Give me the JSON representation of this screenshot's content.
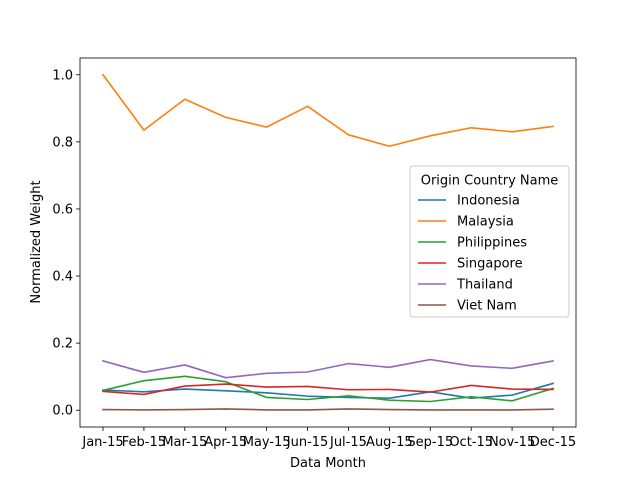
{
  "chart_data": {
    "type": "line",
    "title": "",
    "xlabel": "Data Month",
    "ylabel": "Normalized Weight",
    "categories": [
      "Jan-15",
      "Feb-15",
      "Mar-15",
      "Apr-15",
      "May-15",
      "Jun-15",
      "Jul-15",
      "Aug-15",
      "Sep-15",
      "Oct-15",
      "Nov-15",
      "Dec-15"
    ],
    "ylim": [
      -0.05,
      1.05
    ],
    "yticks": [
      0.0,
      0.2,
      0.4,
      0.6,
      0.8,
      1.0
    ],
    "grid": false,
    "legend": {
      "title": "Origin Country Name",
      "placement": "center-right"
    },
    "series": [
      {
        "name": "Indonesia",
        "color": "#1f77b4",
        "values": [
          0.06,
          0.055,
          0.063,
          0.058,
          0.052,
          0.042,
          0.038,
          0.036,
          0.055,
          0.036,
          0.045,
          0.08
        ]
      },
      {
        "name": "Malaysia",
        "color": "#ff7f0e",
        "values": [
          1.0,
          0.835,
          0.927,
          0.873,
          0.844,
          0.906,
          0.821,
          0.787,
          0.818,
          0.842,
          0.83,
          0.846
        ]
      },
      {
        "name": "Philippines",
        "color": "#2ca02c",
        "values": [
          0.059,
          0.088,
          0.101,
          0.085,
          0.038,
          0.032,
          0.043,
          0.03,
          0.026,
          0.04,
          0.028,
          0.065
        ]
      },
      {
        "name": "Singapore",
        "color": "#d62728",
        "values": [
          0.056,
          0.047,
          0.072,
          0.078,
          0.069,
          0.071,
          0.061,
          0.062,
          0.054,
          0.074,
          0.063,
          0.062
        ]
      },
      {
        "name": "Thailand",
        "color": "#9467bd",
        "values": [
          0.147,
          0.113,
          0.135,
          0.097,
          0.11,
          0.114,
          0.139,
          0.128,
          0.151,
          0.132,
          0.125,
          0.147
        ]
      },
      {
        "name": "Viet Nam",
        "color": "#8c564b",
        "values": [
          0.002,
          0.001,
          0.002,
          0.004,
          0.001,
          0.001,
          0.004,
          0.002,
          0.001,
          0.001,
          0.001,
          0.003
        ]
      }
    ]
  }
}
